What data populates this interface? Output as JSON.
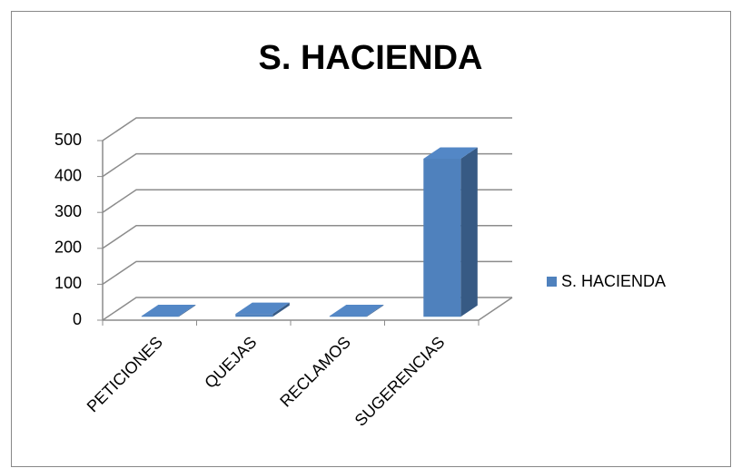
{
  "chart_data": {
    "type": "bar3d",
    "title": "S. HACIENDA",
    "categories": [
      "PETICIONES",
      "QUEJAS",
      "RECLAMOS",
      "SUGERENCIAS"
    ],
    "series": [
      {
        "name": "S. HACIENDA",
        "color": "#4f81bd",
        "values": [
          2,
          8,
          2,
          440
        ]
      }
    ],
    "ylim": [
      0,
      500
    ],
    "yticks": [
      0,
      100,
      200,
      300,
      400,
      500
    ],
    "grid": true,
    "legend": "right"
  }
}
